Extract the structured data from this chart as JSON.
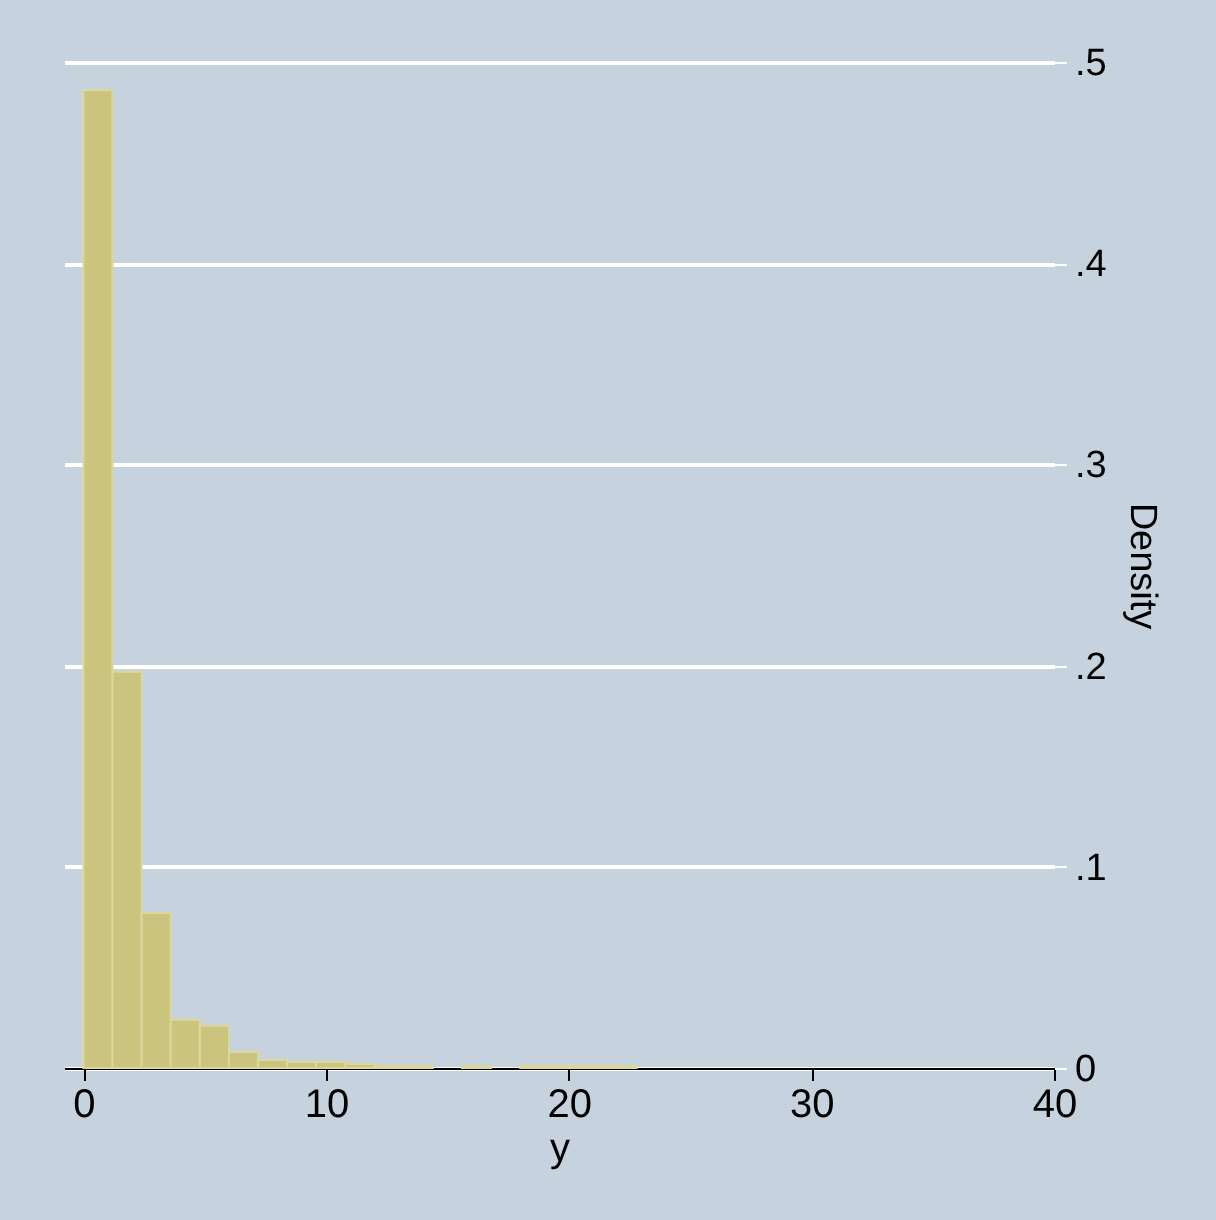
{
  "chart_data": {
    "type": "histogram",
    "xlabel": "y",
    "ylabel": "Density",
    "bins": [
      0,
      1.2,
      2.4,
      3.6,
      4.8,
      6,
      7.2,
      8.4,
      9.6,
      10.8,
      12,
      13.2,
      14.4,
      15.6,
      16.8,
      18,
      19.2,
      20.4,
      21.6,
      22.8,
      24
    ],
    "values": [
      0.486,
      0.197,
      0.077,
      0.024,
      0.021,
      0.008,
      0.004,
      0.003,
      0.003,
      0.002,
      0.001,
      0.001,
      0,
      0.001,
      0,
      0.001,
      0.001,
      0.001,
      0.001,
      0
    ],
    "color": "#cbc47f",
    "xlim": [
      -0.8,
      40
    ],
    "xticks": [
      0,
      10,
      20,
      30,
      40
    ],
    "ylim": [
      0,
      0.5
    ],
    "yticks": [
      {
        "value": 0,
        "label": "0"
      },
      {
        "value": 0.1,
        "label": ".1"
      },
      {
        "value": 0.2,
        "label": ".2"
      },
      {
        "value": 0.3,
        "label": ".3"
      },
      {
        "value": 0.4,
        "label": ".4"
      },
      {
        "value": 0.5,
        "label": ".5"
      }
    ],
    "grid": "y"
  }
}
